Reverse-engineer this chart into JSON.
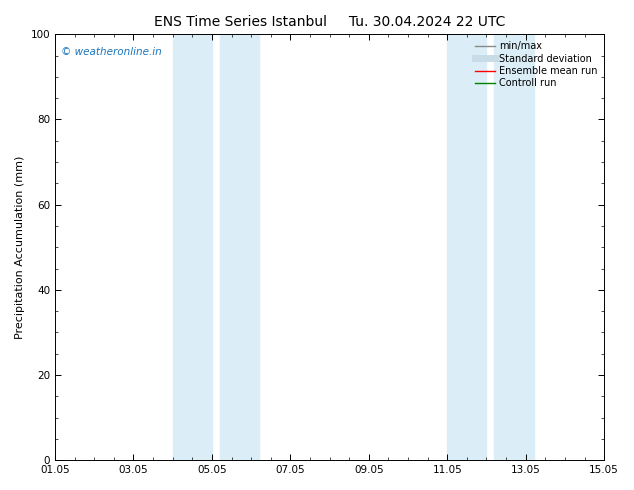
{
  "title": "ENS Time Series Istanbul",
  "title2": "Tu. 30.04.2024 22 UTC",
  "ylabel": "Precipitation Accumulation (mm)",
  "ylim": [
    0,
    100
  ],
  "yticks": [
    0,
    20,
    40,
    60,
    80,
    100
  ],
  "xmin": 0,
  "xmax": 14,
  "xtick_positions": [
    0,
    2,
    4,
    6,
    8,
    10,
    12,
    14
  ],
  "xtick_labels": [
    "01.05",
    "03.05",
    "05.05",
    "07.05",
    "09.05",
    "11.05",
    "13.05",
    "15.05"
  ],
  "shaded_bands": [
    {
      "xmin": 3.0,
      "xmax": 4.0,
      "color": "#dbeef7"
    },
    {
      "xmin": 4.2,
      "xmax": 5.2,
      "color": "#dbeef7"
    },
    {
      "xmin": 10.0,
      "xmax": 11.0,
      "color": "#dbeef7"
    },
    {
      "xmin": 11.2,
      "xmax": 12.2,
      "color": "#dbeef7"
    }
  ],
  "watermark_text": "© weatheronline.in",
  "watermark_color": "#1a75bc",
  "legend_entries": [
    {
      "label": "min/max",
      "color": "#888888",
      "lw": 1.0
    },
    {
      "label": "Standard deviation",
      "color": "#c8dce8",
      "lw": 5
    },
    {
      "label": "Ensemble mean run",
      "color": "#ff0000",
      "lw": 1.0
    },
    {
      "label": "Controll run",
      "color": "#008000",
      "lw": 1.0
    }
  ],
  "background_color": "#ffffff",
  "title_fontsize": 10,
  "axis_fontsize": 8,
  "tick_fontsize": 7.5,
  "legend_fontsize": 7
}
